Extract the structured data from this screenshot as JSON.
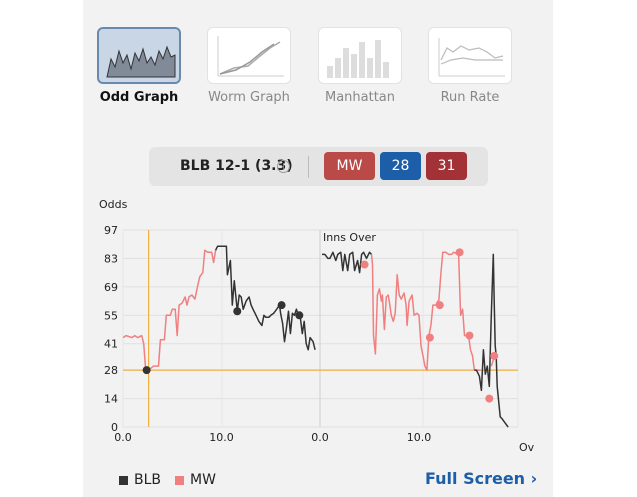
{
  "tabs": [
    {
      "label": "Odd Graph",
      "icon": "odd-graph-icon",
      "active": true
    },
    {
      "label": "Worm Graph",
      "icon": "worm-graph-icon",
      "active": false
    },
    {
      "label": "Manhattan",
      "icon": "manhattan-icon",
      "active": false
    },
    {
      "label": "Run Rate",
      "icon": "run-rate-icon",
      "active": false
    }
  ],
  "score": {
    "text": "BLB 12-1 (3.3)",
    "info_icon": "info-icon",
    "team_badge": "MW",
    "badge_a": "28",
    "badge_b": "31"
  },
  "colors": {
    "blb": "#333333",
    "mw": "#f07f80",
    "highlight": "#f0b040",
    "badge_mw": "#b94a48",
    "badge_a": "#1d5ea8",
    "badge_b": "#a33236",
    "link": "#1d5ea8"
  },
  "legend": {
    "blb": "BLB",
    "mw": "MW"
  },
  "full_screen_label": "Full Screen ›",
  "chart_data": {
    "type": "line",
    "ylabel": "Odds",
    "xlabel": "Ov",
    "annotation": "Inns Over",
    "yticks": [
      0,
      14,
      28,
      41,
      55,
      69,
      83,
      97
    ],
    "xtick_labels": [
      "0.0",
      "10.0",
      "0.0",
      "10.0"
    ],
    "ylim": [
      0,
      97
    ],
    "highlight_y": 28,
    "innings": [
      {
        "series": [
          {
            "name": "BLB",
            "color": "blb",
            "points": [
              [
                2.4,
                28
              ],
              [
                2.6,
                28
              ]
            ]
          },
          {
            "name": "MW",
            "color": "mw",
            "points": [
              [
                0,
                44
              ],
              [
                0.3,
                45
              ],
              [
                0.9,
                44
              ],
              [
                1.2,
                45
              ],
              [
                1.5,
                44
              ],
              [
                1.9,
                45
              ],
              [
                2.1,
                41
              ],
              [
                2.3,
                28
              ],
              [
                2.6,
                28
              ],
              [
                3.1,
                30
              ],
              [
                3.6,
                30
              ],
              [
                3.8,
                43
              ],
              [
                4.2,
                43
              ],
              [
                4.4,
                55
              ],
              [
                4.8,
                55
              ],
              [
                5.0,
                58
              ],
              [
                5.3,
                58
              ],
              [
                5.5,
                45
              ],
              [
                5.7,
                60
              ],
              [
                6.0,
                61
              ],
              [
                6.3,
                64
              ],
              [
                6.5,
                60
              ],
              [
                6.7,
                64
              ],
              [
                7.0,
                65
              ],
              [
                7.3,
                63
              ],
              [
                7.6,
                70
              ],
              [
                7.8,
                74
              ],
              [
                8.1,
                76
              ],
              [
                8.3,
                87
              ],
              [
                8.6,
                86
              ],
              [
                9.0,
                86
              ],
              [
                9.2,
                81
              ],
              [
                9.4,
                87
              ]
            ]
          },
          {
            "name": "BLB",
            "color": "blb",
            "points": [
              [
                9.4,
                87
              ],
              [
                9.6,
                89
              ],
              [
                10.2,
                89
              ],
              [
                10.5,
                89
              ],
              [
                10.6,
                75
              ],
              [
                10.9,
                82
              ],
              [
                11.1,
                60
              ],
              [
                11.3,
                72
              ],
              [
                11.5,
                62
              ],
              [
                11.6,
                57
              ],
              [
                11.8,
                65
              ],
              [
                12.0,
                64
              ],
              [
                12.2,
                58
              ],
              [
                12.5,
                62
              ],
              [
                12.8,
                64
              ],
              [
                13.0,
                60
              ],
              [
                13.2,
                58
              ],
              [
                13.5,
                55
              ],
              [
                13.8,
                52
              ],
              [
                14.1,
                50
              ],
              [
                14.3,
                55
              ],
              [
                14.5,
                54
              ],
              [
                14.8,
                54
              ],
              [
                15.0,
                55
              ],
              [
                15.3,
                56
              ],
              [
                15.6,
                58
              ],
              [
                15.9,
                60
              ],
              [
                16.0,
                56
              ],
              [
                16.2,
                51
              ],
              [
                16.4,
                42
              ],
              [
                16.6,
                49
              ],
              [
                16.8,
                57
              ],
              [
                17.0,
                46
              ],
              [
                17.2,
                56
              ],
              [
                17.4,
                55
              ],
              [
                17.6,
                58
              ],
              [
                17.8,
                55
              ],
              [
                18.0,
                54
              ],
              [
                18.2,
                46
              ],
              [
                18.4,
                52
              ],
              [
                18.6,
                41
              ],
              [
                18.8,
                38
              ],
              [
                19.0,
                44
              ],
              [
                19.3,
                42
              ],
              [
                19.5,
                38
              ]
            ]
          }
        ],
        "markers": [
          {
            "color": "blb",
            "point": [
              2.4,
              28
            ]
          },
          {
            "color": "blb",
            "point": [
              11.6,
              57
            ]
          },
          {
            "color": "blb",
            "point": [
              16.1,
              60
            ]
          },
          {
            "color": "blb",
            "point": [
              17.9,
              55
            ]
          }
        ]
      },
      {
        "series": [
          {
            "name": "BLB",
            "color": "blb",
            "points": [
              [
                0.2,
                85
              ],
              [
                0.5,
                85
              ],
              [
                0.8,
                83
              ],
              [
                1.0,
                83
              ],
              [
                1.3,
                86
              ],
              [
                1.6,
                82
              ],
              [
                1.8,
                85
              ],
              [
                2.1,
                86
              ],
              [
                2.3,
                77
              ],
              [
                2.5,
                85
              ],
              [
                2.8,
                77
              ],
              [
                3.0,
                85
              ],
              [
                3.3,
                86
              ],
              [
                3.5,
                77
              ],
              [
                3.8,
                82
              ],
              [
                4.0,
                76
              ],
              [
                4.2,
                85
              ],
              [
                4.4,
                86
              ],
              [
                4.7,
                83
              ],
              [
                5.0,
                86
              ],
              [
                5.2,
                85
              ]
            ]
          },
          {
            "name": "MW",
            "color": "mw",
            "points": [
              [
                5.2,
                85
              ],
              [
                5.3,
                80
              ],
              [
                5.4,
                45
              ],
              [
                5.6,
                36
              ],
              [
                5.8,
                65
              ],
              [
                6.0,
                68
              ],
              [
                6.2,
                62
              ],
              [
                6.3,
                65
              ],
              [
                6.5,
                48
              ],
              [
                6.7,
                64
              ],
              [
                6.9,
                65
              ],
              [
                7.2,
                55
              ],
              [
                7.4,
                52
              ],
              [
                7.6,
                56
              ],
              [
                7.8,
                75
              ],
              [
                8.0,
                65
              ],
              [
                8.2,
                63
              ],
              [
                8.5,
                66
              ],
              [
                8.7,
                60
              ],
              [
                8.8,
                50
              ],
              [
                9.0,
                62
              ],
              [
                9.3,
                65
              ],
              [
                9.5,
                55
              ],
              [
                9.8,
                56
              ],
              [
                10.0,
                55
              ],
              [
                10.2,
                40
              ],
              [
                10.4,
                35
              ],
              [
                10.6,
                30
              ],
              [
                10.8,
                28
              ],
              [
                11.0,
                45
              ],
              [
                11.2,
                50
              ],
              [
                11.4,
                60
              ],
              [
                11.7,
                60
              ],
              [
                11.9,
                62
              ],
              [
                12.0,
                62
              ],
              [
                12.2,
                75
              ],
              [
                12.4,
                86
              ],
              [
                12.7,
                86
              ],
              [
                13.0,
                85
              ],
              [
                13.3,
                85
              ],
              [
                13.5,
                86
              ],
              [
                14.0,
                85
              ],
              [
                14.2,
                55
              ],
              [
                14.4,
                58
              ],
              [
                14.6,
                45
              ],
              [
                15.0,
                45
              ],
              [
                15.2,
                38
              ],
              [
                15.4,
                35
              ],
              [
                15.6,
                28
              ],
              [
                16.0,
                28
              ],
              [
                16.2,
                28
              ]
            ]
          },
          {
            "name": "BLB",
            "color": "blb",
            "points": [
              [
                15.6,
                28
              ],
              [
                15.8,
                28
              ],
              [
                16.1,
                25
              ],
              [
                16.3,
                18
              ],
              [
                16.5,
                38
              ],
              [
                16.7,
                26
              ],
              [
                16.9,
                30
              ],
              [
                17.1,
                20
              ],
              [
                17.3,
                55
              ],
              [
                17.5,
                85
              ],
              [
                17.6,
                62
              ],
              [
                17.7,
                40
              ],
              [
                17.8,
                35
              ],
              [
                17.9,
                20
              ],
              [
                18.0,
                15
              ],
              [
                18.2,
                5
              ],
              [
                18.4,
                4
              ],
              [
                18.7,
                2
              ],
              [
                19.0,
                0
              ]
            ]
          },
          {
            "name": "MW",
            "color": "mw",
            "points": [
              [
                17.3,
                30
              ],
              [
                17.5,
                33
              ],
              [
                17.7,
                35
              ]
            ]
          }
        ],
        "markers": [
          {
            "color": "mw",
            "point": [
              4.5,
              80
            ]
          },
          {
            "color": "mw",
            "point": [
              11.1,
              44
            ]
          },
          {
            "color": "mw",
            "point": [
              12.1,
              60
            ]
          },
          {
            "color": "mw",
            "point": [
              14.1,
              86
            ]
          },
          {
            "color": "mw",
            "point": [
              15.1,
              45
            ]
          },
          {
            "color": "mw",
            "point": [
              17.1,
              14
            ]
          },
          {
            "color": "mw",
            "point": [
              17.6,
              35
            ]
          }
        ]
      }
    ]
  }
}
